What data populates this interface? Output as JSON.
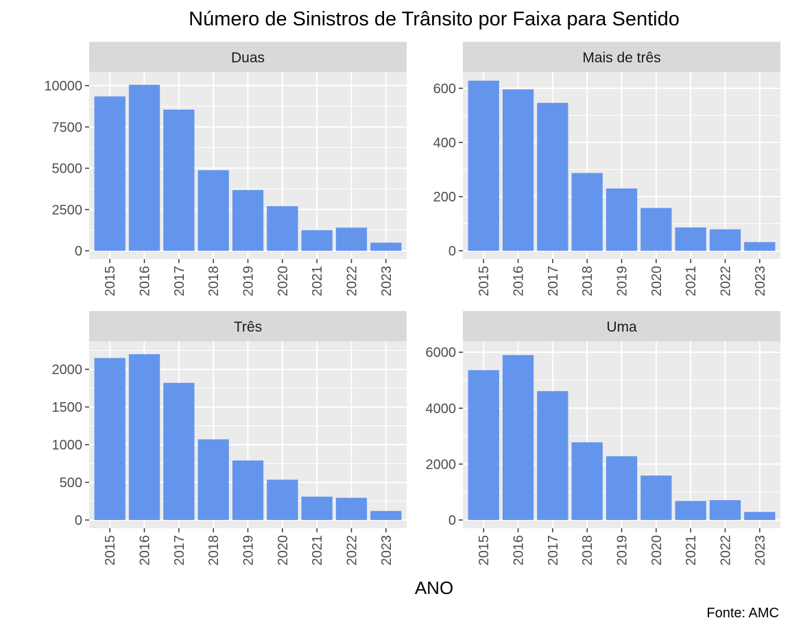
{
  "chart_data": {
    "type": "bar",
    "title": "Número de Sinistros de Trânsito por Faixa para Sentido",
    "xlabel": "ANO",
    "ylabel": "",
    "caption": "Fonte: AMC",
    "categories": [
      "2015",
      "2016",
      "2017",
      "2018",
      "2019",
      "2020",
      "2021",
      "2022",
      "2023"
    ],
    "colors": {
      "bar": "#6495ED",
      "panel": "#EBEBEB",
      "strip": "#D9D9D9",
      "grid": "#FFFFFF",
      "tick": "#333333"
    },
    "grid": true,
    "facets": [
      {
        "label": "Duas",
        "ylim": [
          0,
          10500
        ],
        "yticks": [
          0,
          2500,
          5000,
          7500,
          10000
        ],
        "ytick_labels": [
          "0",
          "2500",
          "5000",
          "7500",
          "10000"
        ],
        "values": [
          9350,
          10050,
          8550,
          4880,
          3680,
          2700,
          1250,
          1400,
          490
        ]
      },
      {
        "label": "Mais de três",
        "ylim": [
          0,
          640
        ],
        "yticks": [
          0,
          200,
          400,
          600
        ],
        "ytick_labels": [
          "0",
          "200",
          "400",
          "600"
        ],
        "values": [
          628,
          596,
          546,
          287,
          230,
          158,
          86,
          79,
          32
        ]
      },
      {
        "label": "Três",
        "ylim": [
          0,
          2300
        ],
        "yticks": [
          0,
          500,
          1000,
          1500,
          2000
        ],
        "ytick_labels": [
          "0",
          "500",
          "1000",
          "1500",
          "2000"
        ],
        "values": [
          2150,
          2200,
          1820,
          1070,
          790,
          535,
          310,
          295,
          120
        ]
      },
      {
        "label": "Uma",
        "ylim": [
          0,
          6200
        ],
        "yticks": [
          0,
          2000,
          4000,
          6000
        ],
        "ytick_labels": [
          "0",
          "2000",
          "4000",
          "6000"
        ],
        "values": [
          5360,
          5900,
          4610,
          2780,
          2280,
          1590,
          680,
          710,
          290
        ]
      }
    ]
  }
}
